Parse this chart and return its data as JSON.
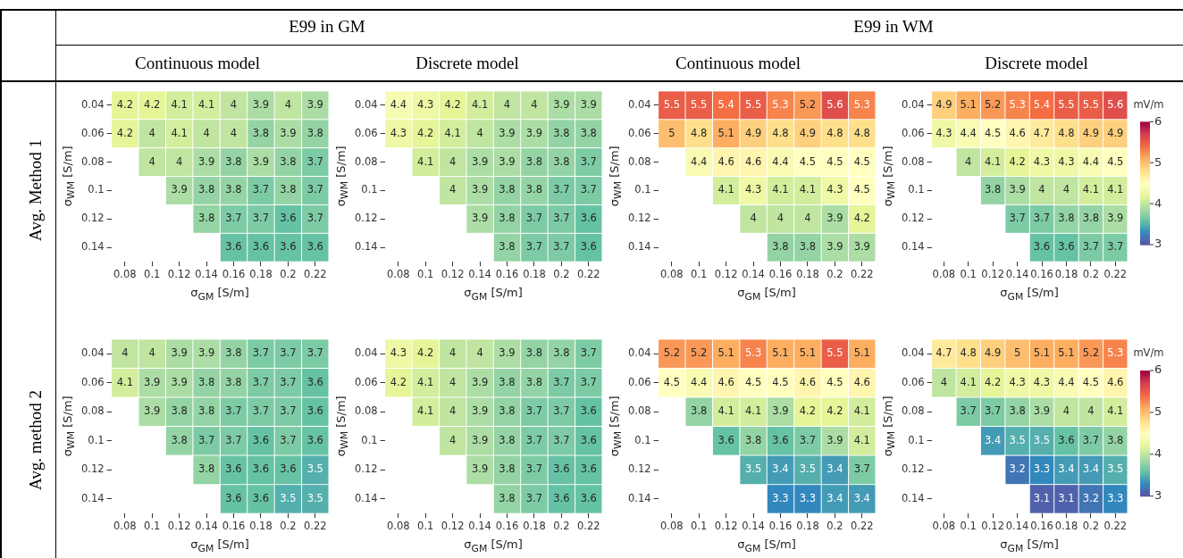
{
  "chart_data": [
    {
      "type": "other",
      "annotations": [
        "E99 in GM",
        "E99 in WM",
        "Continuous model",
        "Discrete model",
        "Continuous model",
        "Discrete model",
        "Avg. Method 1",
        "Avg. method 2"
      ]
    },
    {
      "type": "heatmap",
      "xlabel": "σ$_{GM}$ [S/m]",
      "ylabel": "σ$_{WM}$ [S/m]",
      "categories": [
        "0.08",
        "0.1",
        "0.12",
        "0.14",
        "0.16",
        "0.18",
        "0.2",
        "0.22"
      ],
      "y_categories": [
        "0.04",
        "0.06",
        "0.08",
        "0.1",
        "0.12",
        "0.14"
      ],
      "data_labels": true,
      "cells": [
        [
          4.2,
          4.2,
          4.1,
          4.1,
          4,
          3.9,
          4,
          3.9
        ],
        [
          4.2,
          4,
          4.1,
          4,
          4,
          3.8,
          3.9,
          3.8
        ],
        [
          null,
          4,
          4,
          3.9,
          3.8,
          3.9,
          3.8,
          3.7
        ],
        [
          null,
          null,
          3.9,
          3.8,
          3.8,
          3.7,
          3.8,
          3.7
        ],
        [
          null,
          null,
          null,
          3.8,
          3.7,
          3.7,
          3.6,
          3.7
        ],
        [
          null,
          null,
          null,
          null,
          3.6,
          3.6,
          3.6,
          3.6
        ]
      ]
    },
    {
      "type": "heatmap",
      "xlabel": "σ$_{GM}$ [S/m]",
      "ylabel": "σ$_{WM}$ [S/m]",
      "categories": [
        "0.08",
        "0.1",
        "0.12",
        "0.14",
        "0.16",
        "0.18",
        "0.2",
        "0.22"
      ],
      "y_categories": [
        "0.04",
        "0.06",
        "0.08",
        "0.1",
        "0.12",
        "0.14"
      ],
      "data_labels": true,
      "cells": [
        [
          4.4,
          4.3,
          4.2,
          4.1,
          4,
          4,
          3.9,
          3.9
        ],
        [
          4.3,
          4.2,
          4.1,
          4,
          3.9,
          3.9,
          3.8,
          3.8
        ],
        [
          null,
          4.1,
          4,
          3.9,
          3.9,
          3.8,
          3.8,
          3.7
        ],
        [
          null,
          null,
          4,
          3.9,
          3.8,
          3.8,
          3.7,
          3.7
        ],
        [
          null,
          null,
          null,
          3.9,
          3.8,
          3.7,
          3.7,
          3.6
        ],
        [
          null,
          null,
          null,
          null,
          3.8,
          3.7,
          3.7,
          3.6
        ]
      ]
    },
    {
      "type": "heatmap",
      "xlabel": "σ$_{GM}$ [S/m]",
      "ylabel": "σ$_{WM}$ [S/m]",
      "categories": [
        "0.08",
        "0.1",
        "0.12",
        "0.14",
        "0.16",
        "0.18",
        "0.2",
        "0.22"
      ],
      "y_categories": [
        "0.04",
        "0.06",
        "0.08",
        "0.1",
        "0.12",
        "0.14"
      ],
      "data_labels": true,
      "cells": [
        [
          5.5,
          5.5,
          5.4,
          5.5,
          5.3,
          5.2,
          5.6,
          5.3
        ],
        [
          5,
          4.8,
          5.1,
          4.9,
          4.8,
          4.9,
          4.8,
          4.8
        ],
        [
          null,
          4.4,
          4.6,
          4.6,
          4.4,
          4.5,
          4.5,
          4.5
        ],
        [
          null,
          null,
          4.1,
          4.3,
          4.1,
          4.1,
          4.3,
          4.5
        ],
        [
          null,
          null,
          null,
          4,
          4,
          4,
          3.9,
          4.2
        ],
        [
          null,
          null,
          null,
          null,
          3.8,
          3.8,
          3.9,
          3.9
        ]
      ]
    },
    {
      "type": "heatmap",
      "xlabel": "σ$_{GM}$ [S/m]",
      "ylabel": "σ$_{WM}$ [S/m]",
      "categories": [
        "0.08",
        "0.1",
        "0.12",
        "0.14",
        "0.16",
        "0.18",
        "0.2",
        "0.22"
      ],
      "y_categories": [
        "0.04",
        "0.06",
        "0.08",
        "0.1",
        "0.12",
        "0.14"
      ],
      "clim": [
        3,
        6
      ],
      "cticks": [
        3,
        4,
        5,
        6
      ],
      "clabel": "mV/m",
      "data_labels": true,
      "cells": [
        [
          4.9,
          5.1,
          5.2,
          5.3,
          5.4,
          5.5,
          5.5,
          5.6
        ],
        [
          4.3,
          4.4,
          4.5,
          4.6,
          4.7,
          4.8,
          4.9,
          4.9
        ],
        [
          null,
          4,
          4.1,
          4.2,
          4.3,
          4.3,
          4.4,
          4.5
        ],
        [
          null,
          null,
          3.8,
          3.9,
          4,
          4,
          4.1,
          4.1
        ],
        [
          null,
          null,
          null,
          3.7,
          3.7,
          3.8,
          3.8,
          3.9
        ],
        [
          null,
          null,
          null,
          null,
          3.6,
          3.6,
          3.7,
          3.7
        ]
      ]
    },
    {
      "type": "heatmap",
      "xlabel": "σ$_{GM}$ [S/m]",
      "ylabel": "σ$_{WM}$ [S/m]",
      "categories": [
        "0.08",
        "0.1",
        "0.12",
        "0.14",
        "0.16",
        "0.18",
        "0.2",
        "0.22"
      ],
      "y_categories": [
        "0.04",
        "0.06",
        "0.08",
        "0.1",
        "0.12",
        "0.14"
      ],
      "data_labels": true,
      "cells": [
        [
          4,
          4,
          3.9,
          3.9,
          3.8,
          3.7,
          3.7,
          3.7
        ],
        [
          4.1,
          3.9,
          3.9,
          3.8,
          3.8,
          3.7,
          3.7,
          3.6
        ],
        [
          null,
          3.9,
          3.8,
          3.8,
          3.7,
          3.7,
          3.7,
          3.6
        ],
        [
          null,
          null,
          3.8,
          3.7,
          3.7,
          3.6,
          3.7,
          3.6
        ],
        [
          null,
          null,
          null,
          3.8,
          3.6,
          3.6,
          3.6,
          3.5
        ],
        [
          null,
          null,
          null,
          null,
          3.6,
          3.6,
          3.5,
          3.5
        ]
      ]
    },
    {
      "type": "heatmap",
      "xlabel": "σ$_{GM}$ [S/m]",
      "ylabel": "σ$_{WM}$ [S/m]",
      "categories": [
        "0.08",
        "0.1",
        "0.12",
        "0.14",
        "0.16",
        "0.18",
        "0.2",
        "0.22"
      ],
      "y_categories": [
        "0.04",
        "0.06",
        "0.08",
        "0.1",
        "0.12",
        "0.14"
      ],
      "data_labels": true,
      "cells": [
        [
          4.3,
          4.2,
          4,
          4,
          3.9,
          3.8,
          3.8,
          3.7
        ],
        [
          4.2,
          4.1,
          4,
          3.9,
          3.8,
          3.8,
          3.7,
          3.7
        ],
        [
          null,
          4.1,
          4,
          3.9,
          3.8,
          3.7,
          3.7,
          3.6
        ],
        [
          null,
          null,
          4,
          3.9,
          3.8,
          3.7,
          3.7,
          3.6
        ],
        [
          null,
          null,
          null,
          3.9,
          3.8,
          3.7,
          3.6,
          3.6
        ],
        [
          null,
          null,
          null,
          null,
          3.8,
          3.7,
          3.6,
          3.6
        ]
      ]
    },
    {
      "type": "heatmap",
      "xlabel": "σ$_{GM}$ [S/m]",
      "ylabel": "σ$_{WM}$ [S/m]",
      "categories": [
        "0.08",
        "0.1",
        "0.12",
        "0.14",
        "0.16",
        "0.18",
        "0.2",
        "0.22"
      ],
      "y_categories": [
        "0.04",
        "0.06",
        "0.08",
        "0.1",
        "0.12",
        "0.14"
      ],
      "data_labels": true,
      "cells": [
        [
          5.2,
          5.2,
          5.1,
          5.3,
          5.1,
          5.1,
          5.5,
          5.1
        ],
        [
          4.5,
          4.4,
          4.6,
          4.5,
          4.5,
          4.6,
          4.5,
          4.6
        ],
        [
          null,
          3.8,
          4.1,
          4.1,
          3.9,
          4.2,
          4.2,
          4.1
        ],
        [
          null,
          null,
          3.6,
          3.8,
          3.6,
          3.7,
          3.9,
          4.1
        ],
        [
          null,
          null,
          null,
          3.5,
          3.4,
          3.5,
          3.4,
          3.7
        ],
        [
          null,
          null,
          null,
          null,
          3.3,
          3.3,
          3.4,
          3.4
        ]
      ]
    },
    {
      "type": "heatmap",
      "xlabel": "σ$_{GM}$ [S/m]",
      "ylabel": "σ$_{WM}$ [S/m]",
      "categories": [
        "0.08",
        "0.1",
        "0.12",
        "0.14",
        "0.16",
        "0.18",
        "0.2",
        "0.22"
      ],
      "y_categories": [
        "0.04",
        "0.06",
        "0.08",
        "0.1",
        "0.12",
        "0.14"
      ],
      "clim": [
        3,
        6
      ],
      "cticks": [
        3,
        4,
        5,
        6
      ],
      "clabel": "mV/m",
      "data_labels": true,
      "cells": [
        [
          4.7,
          4.8,
          4.9,
          5,
          5.1,
          5.1,
          5.2,
          5.3
        ],
        [
          4,
          4.1,
          4.2,
          4.3,
          4.3,
          4.4,
          4.5,
          4.6
        ],
        [
          null,
          3.7,
          3.7,
          3.8,
          3.9,
          4,
          4,
          4.1
        ],
        [
          null,
          null,
          3.4,
          3.5,
          3.5,
          3.6,
          3.7,
          3.8
        ],
        [
          null,
          null,
          null,
          3.2,
          3.3,
          3.4,
          3.4,
          3.5
        ],
        [
          null,
          null,
          null,
          null,
          3.1,
          3.1,
          3.2,
          3.3
        ]
      ]
    }
  ]
}
